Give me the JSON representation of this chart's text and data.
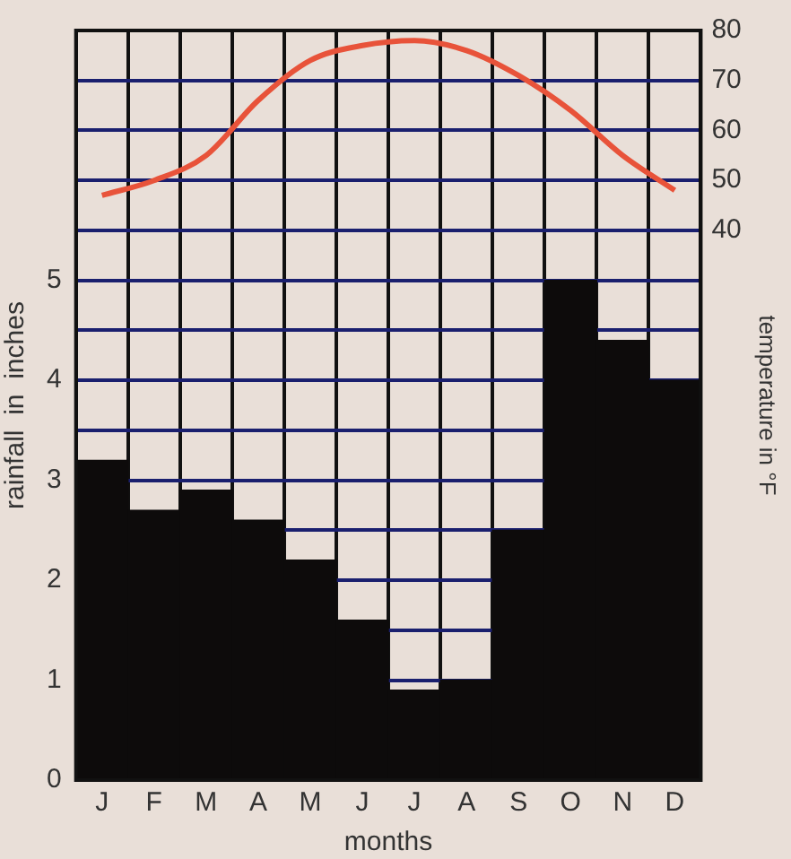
{
  "chart_data": {
    "type": "bar",
    "xlabel": "months",
    "ylabel": "rainfall  in  inches",
    "y2label": "temperature in °F",
    "categories": [
      "J",
      "F",
      "M",
      "A",
      "M",
      "J",
      "J",
      "A",
      "S",
      "O",
      "N",
      "D"
    ],
    "series": [
      {
        "color": "#0d0b0b",
        "values": [
          3.2,
          2.7,
          2.9,
          2.6,
          2.2,
          1.6,
          0.9,
          1.0,
          2.5,
          5.0,
          4.4,
          4.0
        ]
      },
      {
        "type": "line",
        "axis": "y2",
        "color": "#e8533a",
        "values": [
          47,
          50,
          55,
          66,
          74,
          77,
          78,
          76,
          71,
          64,
          55,
          48
        ]
      }
    ],
    "ylim": [
      0,
      7.5
    ],
    "yticks": [
      0,
      1,
      {
        "value": 1.5,
        "label": null
      },
      2,
      {
        "value": 2.5,
        "label": null
      },
      3,
      {
        "value": 3.5,
        "label": null
      },
      4,
      {
        "value": 4.5,
        "label": null
      },
      5
    ],
    "y2lim": [
      -70,
      80
    ],
    "y2ticks": [
      40,
      50,
      60,
      70,
      80
    ],
    "grid": true,
    "legend": false,
    "marker": "none",
    "line_style": "solid"
  }
}
